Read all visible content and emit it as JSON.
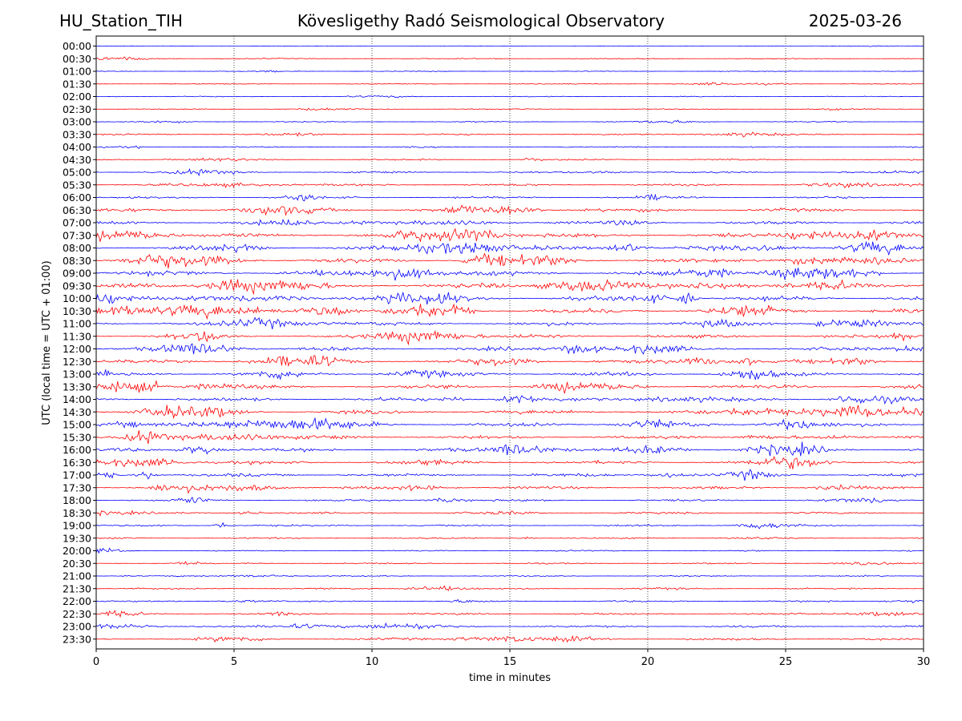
{
  "header": {
    "station": "HU_Station_TIH",
    "observatory": "Kövesligethy Radó Seismological Observatory",
    "date": "2025-03-26"
  },
  "chart_data": {
    "type": "line",
    "chart_kind": "helicorder",
    "xlabel": "time in minutes",
    "ylabel": "UTC (local time = UTC + 01:00)",
    "xlim": [
      0,
      30
    ],
    "x_ticks": [
      0,
      5,
      10,
      15,
      20,
      25,
      30
    ],
    "grid": "vertical dotted lines at each x tick",
    "colors": {
      "even_rows": "#0000ff",
      "odd_rows": "#ff0000"
    },
    "rows": [
      "00:00",
      "00:30",
      "01:00",
      "01:30",
      "02:00",
      "02:30",
      "03:00",
      "03:30",
      "04:00",
      "04:30",
      "05:00",
      "05:30",
      "06:00",
      "06:30",
      "07:00",
      "07:30",
      "08:00",
      "08:30",
      "09:00",
      "09:30",
      "10:00",
      "10:30",
      "11:00",
      "11:30",
      "12:00",
      "12:30",
      "13:00",
      "13:30",
      "14:00",
      "14:30",
      "15:00",
      "15:30",
      "16:00",
      "16:30",
      "17:00",
      "17:30",
      "18:00",
      "18:30",
      "19:00",
      "19:30",
      "20:00",
      "20:30",
      "21:00",
      "21:30",
      "22:00",
      "22:30",
      "23:00",
      "23:30"
    ],
    "amplitude_level": [
      0.4,
      0.9,
      0.6,
      0.7,
      0.7,
      0.8,
      0.8,
      1.2,
      1.0,
      1.2,
      1.4,
      1.6,
      1.8,
      2.6,
      2.6,
      3.4,
      3.4,
      3.6,
      3.6,
      3.8,
      3.8,
      3.6,
      3.0,
      2.8,
      3.0,
      3.2,
      3.2,
      3.0,
      3.0,
      3.0,
      3.0,
      2.8,
      2.8,
      2.6,
      2.6,
      2.2,
      1.8,
      1.6,
      1.4,
      1.2,
      1.0,
      1.0,
      1.0,
      1.2,
      1.4,
      1.4,
      1.6,
      2.0
    ]
  }
}
